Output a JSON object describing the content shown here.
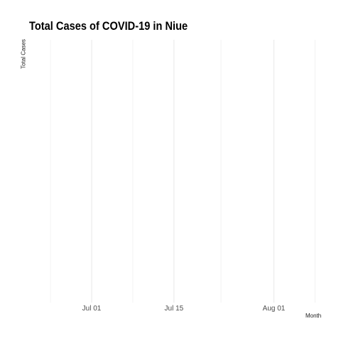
{
  "chart_data": {
    "type": "line",
    "title": "Total Cases of COVID-19 in Niue",
    "xlabel": "Month",
    "ylabel": "Total Cases",
    "x_ticks": [
      {
        "date": "2020-07-01",
        "label": "Jul 01"
      },
      {
        "date": "2020-07-15",
        "label": "Jul 15"
      },
      {
        "date": "2020-08-01",
        "label": "Aug 01"
      }
    ],
    "x_minor_ticks": [
      "2020-06-24",
      "2020-07-08",
      "2020-07-23",
      "2020-08-08"
    ],
    "xlim": [
      "2020-06-20",
      "2020-08-10"
    ],
    "grid": true,
    "series": []
  }
}
